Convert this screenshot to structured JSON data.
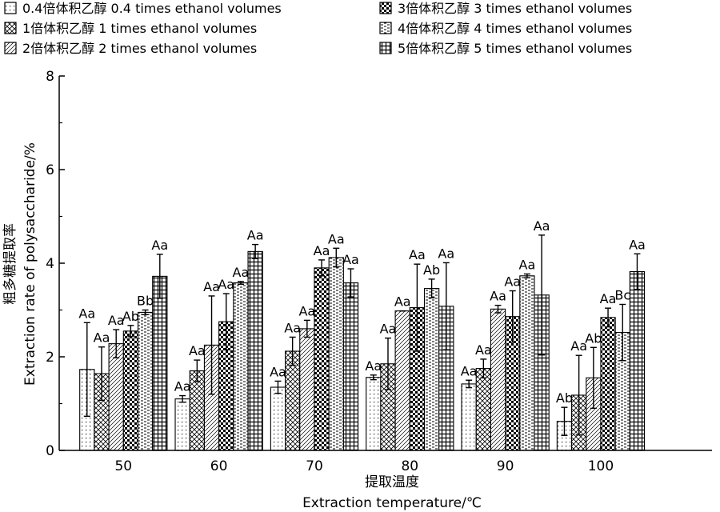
{
  "chart_data": {
    "type": "bar",
    "xlabel_cn": "提取温度",
    "xlabel_en": "Extraction temperature/℃",
    "ylabel_cn": "粗多糖提取率",
    "ylabel_en": "Extraction rate of polysaccharide/%",
    "ylim": [
      0,
      8
    ],
    "yticks": [
      "0",
      "2",
      "4",
      "6",
      "8"
    ],
    "categories": [
      "50",
      "60",
      "70",
      "80",
      "90",
      "100"
    ],
    "legend_position": "top",
    "series": [
      {
        "name": "0.4倍体积乙醇 0.4 times ethanol volumes",
        "pattern": "dots",
        "values": [
          1.73,
          1.1,
          1.35,
          1.56,
          1.42,
          0.62
        ],
        "errors": [
          1.0,
          0.07,
          0.13,
          0.05,
          0.08,
          0.3
        ],
        "labels": [
          "Aa",
          "Aa",
          "Aa",
          "Aa",
          "Aa",
          "Ab"
        ]
      },
      {
        "name": "1倍体积乙醇 1 times ethanol volumes",
        "pattern": "crosshatch",
        "values": [
          1.64,
          1.7,
          2.12,
          1.85,
          1.75,
          1.18
        ],
        "errors": [
          0.57,
          0.23,
          0.3,
          0.55,
          0.2,
          0.85
        ],
        "labels": [
          "Aa",
          "Aa",
          "Aa",
          "Aa",
          "Aa",
          "Aa"
        ]
      },
      {
        "name": "2倍体积乙醇 2 times ethanol volumes",
        "pattern": "diag",
        "values": [
          2.28,
          2.25,
          2.6,
          2.98,
          3.02,
          1.55
        ],
        "errors": [
          0.3,
          1.05,
          0.18,
          0.0,
          0.08,
          0.65
        ],
        "labels": [
          "Aa",
          "Aa",
          "Aa",
          "Aa",
          "Aa",
          "Ab"
        ]
      },
      {
        "name": "3倍体积乙醇 3 times ethanol volumes",
        "pattern": "checker",
        "values": [
          2.55,
          2.75,
          3.9,
          3.05,
          2.86,
          2.84
        ],
        "errors": [
          0.12,
          0.6,
          0.17,
          0.93,
          0.55,
          0.2
        ],
        "labels": [
          "Ab",
          "Aa",
          "Aa",
          "Aa",
          "Aa",
          "Aa"
        ]
      },
      {
        "name": "4倍体积乙醇 4 times ethanol volumes",
        "pattern": "dashes",
        "values": [
          2.95,
          3.58,
          4.12,
          3.46,
          3.73,
          2.52
        ],
        "errors": [
          0.05,
          0.03,
          0.2,
          0.2,
          0.04,
          0.6
        ],
        "labels": [
          "Bb",
          "Aa",
          "Aa",
          "Ab",
          "Aa",
          "Bc"
        ]
      },
      {
        "name": "5倍体积乙醇 5 times ethanol volumes",
        "pattern": "grid",
        "values": [
          3.72,
          4.25,
          3.58,
          3.08,
          3.32,
          3.82
        ],
        "errors": [
          0.47,
          0.15,
          0.3,
          0.93,
          1.28,
          0.38
        ],
        "labels": [
          "Aa",
          "Aa",
          "Aa",
          "Aa",
          "Aa",
          "Aa"
        ]
      }
    ]
  }
}
